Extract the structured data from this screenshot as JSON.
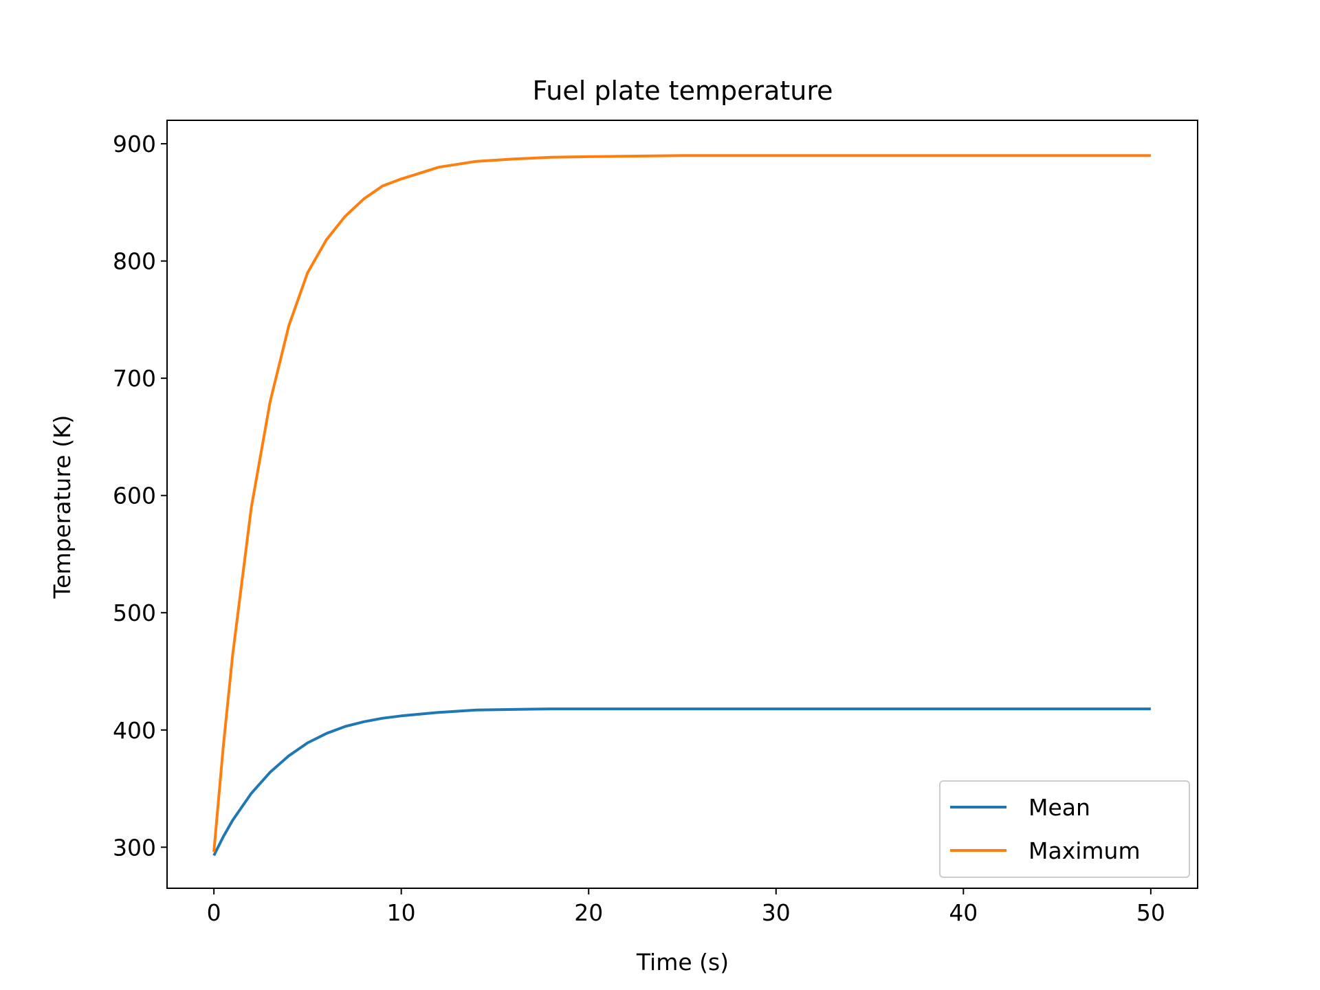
{
  "chart_data": {
    "type": "line",
    "title": "Fuel plate temperature",
    "xlabel": "Time (s)",
    "ylabel": "Temperature (K)",
    "xlim": [
      -2.5,
      52.5
    ],
    "ylim": [
      265,
      920
    ],
    "xticks": [
      0,
      10,
      20,
      30,
      40,
      50
    ],
    "yticks": [
      300,
      400,
      500,
      600,
      700,
      800,
      900
    ],
    "grid": false,
    "legend_position": "lower right",
    "series": [
      {
        "name": "Mean",
        "color": "#1f77b4",
        "x": [
          0,
          0.5,
          1,
          2,
          3,
          4,
          5,
          6,
          7,
          8,
          9,
          10,
          12,
          14,
          16,
          18,
          20,
          25,
          30,
          35,
          40,
          45,
          50
        ],
        "y": [
          293,
          309,
          323,
          346,
          364,
          378,
          389,
          397,
          403,
          407,
          410,
          412,
          415,
          417,
          417.5,
          418,
          418,
          418,
          418,
          418,
          418,
          418,
          418
        ]
      },
      {
        "name": "Maximum",
        "color": "#ff7f0e",
        "x": [
          0,
          0.5,
          1,
          2,
          3,
          4,
          5,
          6,
          7,
          8,
          9,
          10,
          12,
          14,
          16,
          18,
          20,
          25,
          30,
          35,
          40,
          45,
          50
        ],
        "y": [
          296,
          386,
          464,
          590,
          680,
          745,
          790,
          818,
          838,
          853,
          864,
          870,
          880,
          885,
          887,
          888.5,
          889,
          890,
          890,
          890,
          890,
          890,
          890
        ]
      }
    ]
  }
}
